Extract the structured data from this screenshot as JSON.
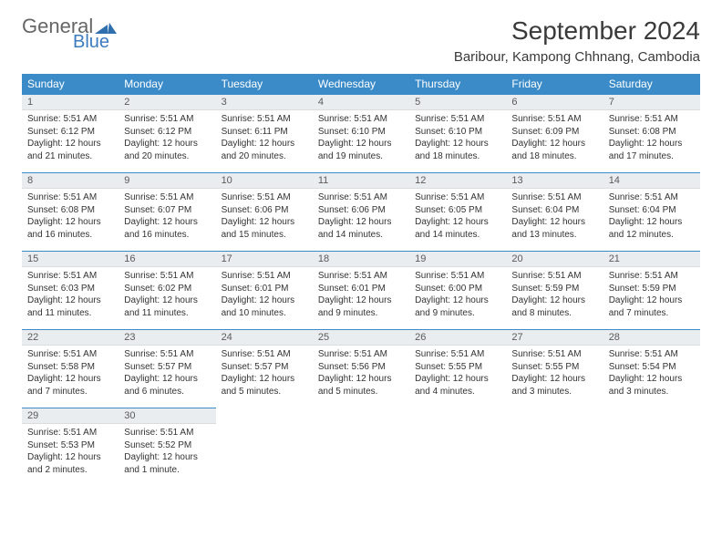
{
  "logo": {
    "text1": "General",
    "text2": "Blue"
  },
  "title": "September 2024",
  "location": "Baribour, Kampong Chhnang, Cambodia",
  "colors": {
    "header_bg": "#3b8bc9",
    "header_fg": "#ffffff",
    "daynum_bg": "#e9edef",
    "border": "#3b8bc9",
    "logo_accent": "#3b7bbf"
  },
  "weekdays": [
    "Sunday",
    "Monday",
    "Tuesday",
    "Wednesday",
    "Thursday",
    "Friday",
    "Saturday"
  ],
  "weeks": [
    [
      {
        "n": 1,
        "sr": "5:51 AM",
        "ss": "6:12 PM",
        "dl": "12 hours and 21 minutes."
      },
      {
        "n": 2,
        "sr": "5:51 AM",
        "ss": "6:12 PM",
        "dl": "12 hours and 20 minutes."
      },
      {
        "n": 3,
        "sr": "5:51 AM",
        "ss": "6:11 PM",
        "dl": "12 hours and 20 minutes."
      },
      {
        "n": 4,
        "sr": "5:51 AM",
        "ss": "6:10 PM",
        "dl": "12 hours and 19 minutes."
      },
      {
        "n": 5,
        "sr": "5:51 AM",
        "ss": "6:10 PM",
        "dl": "12 hours and 18 minutes."
      },
      {
        "n": 6,
        "sr": "5:51 AM",
        "ss": "6:09 PM",
        "dl": "12 hours and 18 minutes."
      },
      {
        "n": 7,
        "sr": "5:51 AM",
        "ss": "6:08 PM",
        "dl": "12 hours and 17 minutes."
      }
    ],
    [
      {
        "n": 8,
        "sr": "5:51 AM",
        "ss": "6:08 PM",
        "dl": "12 hours and 16 minutes."
      },
      {
        "n": 9,
        "sr": "5:51 AM",
        "ss": "6:07 PM",
        "dl": "12 hours and 16 minutes."
      },
      {
        "n": 10,
        "sr": "5:51 AM",
        "ss": "6:06 PM",
        "dl": "12 hours and 15 minutes."
      },
      {
        "n": 11,
        "sr": "5:51 AM",
        "ss": "6:06 PM",
        "dl": "12 hours and 14 minutes."
      },
      {
        "n": 12,
        "sr": "5:51 AM",
        "ss": "6:05 PM",
        "dl": "12 hours and 14 minutes."
      },
      {
        "n": 13,
        "sr": "5:51 AM",
        "ss": "6:04 PM",
        "dl": "12 hours and 13 minutes."
      },
      {
        "n": 14,
        "sr": "5:51 AM",
        "ss": "6:04 PM",
        "dl": "12 hours and 12 minutes."
      }
    ],
    [
      {
        "n": 15,
        "sr": "5:51 AM",
        "ss": "6:03 PM",
        "dl": "12 hours and 11 minutes."
      },
      {
        "n": 16,
        "sr": "5:51 AM",
        "ss": "6:02 PM",
        "dl": "12 hours and 11 minutes."
      },
      {
        "n": 17,
        "sr": "5:51 AM",
        "ss": "6:01 PM",
        "dl": "12 hours and 10 minutes."
      },
      {
        "n": 18,
        "sr": "5:51 AM",
        "ss": "6:01 PM",
        "dl": "12 hours and 9 minutes."
      },
      {
        "n": 19,
        "sr": "5:51 AM",
        "ss": "6:00 PM",
        "dl": "12 hours and 9 minutes."
      },
      {
        "n": 20,
        "sr": "5:51 AM",
        "ss": "5:59 PM",
        "dl": "12 hours and 8 minutes."
      },
      {
        "n": 21,
        "sr": "5:51 AM",
        "ss": "5:59 PM",
        "dl": "12 hours and 7 minutes."
      }
    ],
    [
      {
        "n": 22,
        "sr": "5:51 AM",
        "ss": "5:58 PM",
        "dl": "12 hours and 7 minutes."
      },
      {
        "n": 23,
        "sr": "5:51 AM",
        "ss": "5:57 PM",
        "dl": "12 hours and 6 minutes."
      },
      {
        "n": 24,
        "sr": "5:51 AM",
        "ss": "5:57 PM",
        "dl": "12 hours and 5 minutes."
      },
      {
        "n": 25,
        "sr": "5:51 AM",
        "ss": "5:56 PM",
        "dl": "12 hours and 5 minutes."
      },
      {
        "n": 26,
        "sr": "5:51 AM",
        "ss": "5:55 PM",
        "dl": "12 hours and 4 minutes."
      },
      {
        "n": 27,
        "sr": "5:51 AM",
        "ss": "5:55 PM",
        "dl": "12 hours and 3 minutes."
      },
      {
        "n": 28,
        "sr": "5:51 AM",
        "ss": "5:54 PM",
        "dl": "12 hours and 3 minutes."
      }
    ],
    [
      {
        "n": 29,
        "sr": "5:51 AM",
        "ss": "5:53 PM",
        "dl": "12 hours and 2 minutes."
      },
      {
        "n": 30,
        "sr": "5:51 AM",
        "ss": "5:52 PM",
        "dl": "12 hours and 1 minute."
      },
      null,
      null,
      null,
      null,
      null
    ]
  ],
  "labels": {
    "sunrise": "Sunrise:",
    "sunset": "Sunset:",
    "daylight": "Daylight:"
  }
}
